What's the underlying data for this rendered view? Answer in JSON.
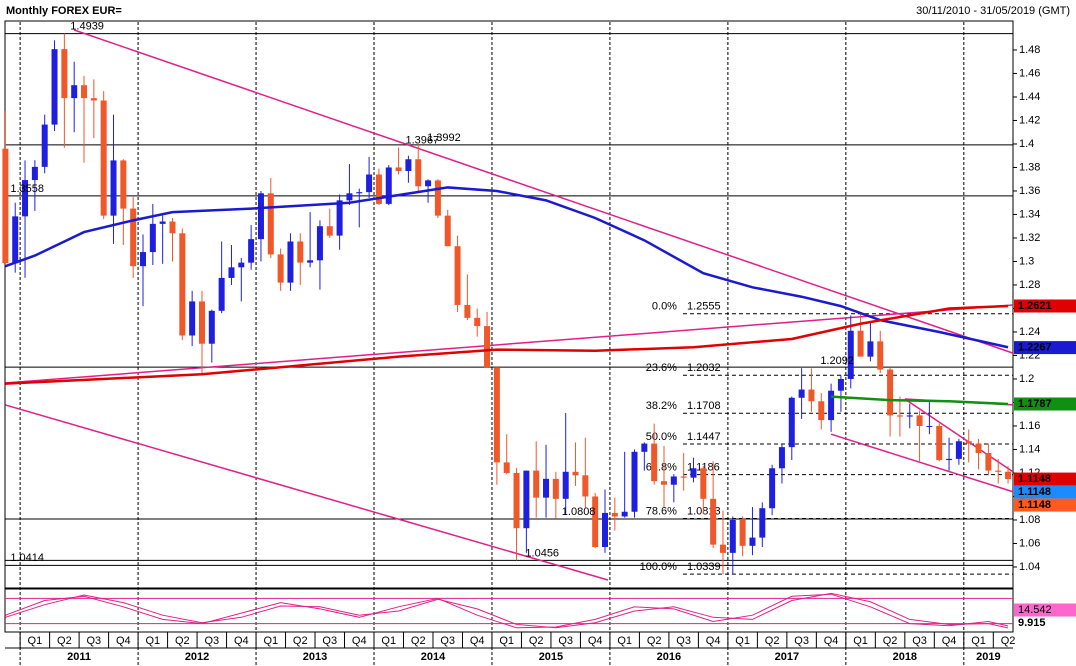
{
  "chart_data": {
    "type": "candlestick",
    "title": "Monthly FOREX EUR=",
    "subtitle": "30/11/2010 - 31/05/2019 (GMT)",
    "up_color": "#1f1fe0",
    "down_color": "#f0582a",
    "ylim": [
      1.0221,
      1.5038
    ],
    "yticks": [
      1.04,
      1.06,
      1.08,
      1.1,
      1.12,
      1.14,
      1.16,
      1.18,
      1.2,
      1.22,
      1.24,
      1.26,
      1.28,
      1.3,
      1.32,
      1.34,
      1.36,
      1.38,
      1.4,
      1.42,
      1.44,
      1.46,
      1.48
    ],
    "open": [
      1.396,
      1.2985,
      1.3384,
      1.3693,
      1.3805,
      1.4165,
      1.4807,
      1.439,
      1.45,
      1.439,
      1.437,
      1.339,
      1.386,
      1.345,
      1.296,
      1.308,
      1.332,
      1.334,
      1.324,
      1.237,
      1.266,
      1.23,
      1.258,
      1.286,
      1.295,
      1.299,
      1.319,
      1.358,
      1.306,
      1.282,
      1.317,
      1.299,
      1.301,
      1.33,
      1.322,
      1.352,
      1.358,
      1.359,
      1.374,
      1.349,
      1.38,
      1.377,
      1.387,
      1.364,
      1.369,
      1.339,
      1.313,
      1.263,
      1.252,
      1.245,
      1.21,
      1.129,
      1.12,
      1.073,
      1.122,
      1.099,
      1.115,
      1.098,
      1.121,
      1.118,
      1.1,
      1.057,
      1.086,
      1.083,
      1.087,
      1.138,
      1.145,
      1.113,
      1.11,
      1.117,
      1.116,
      1.124,
      1.098,
      1.059,
      1.052,
      1.08,
      1.058,
      1.065,
      1.09,
      1.124,
      1.142,
      1.184,
      1.191,
      1.181,
      1.165,
      1.19,
      1.2,
      1.241,
      1.219,
      1.232,
      1.208,
      1.169,
      1.168,
      1.169,
      1.16,
      1.16,
      1.131,
      1.132,
      1.147,
      1.145,
      1.137,
      1.122,
      1.121
    ],
    "high": [
      1.4282,
      1.35,
      1.386,
      1.3862,
      1.425,
      1.4882,
      1.4939,
      1.47,
      1.458,
      1.455,
      1.445,
      1.425,
      1.387,
      1.355,
      1.323,
      1.349,
      1.339,
      1.337,
      1.328,
      1.275,
      1.275,
      1.259,
      1.317,
      1.314,
      1.303,
      1.331,
      1.36,
      1.371,
      1.311,
      1.324,
      1.324,
      1.342,
      1.335,
      1.345,
      1.357,
      1.383,
      1.362,
      1.389,
      1.379,
      1.382,
      1.397,
      1.39,
      1.3992,
      1.37,
      1.37,
      1.344,
      1.322,
      1.289,
      1.26,
      1.257,
      1.21,
      1.153,
      1.124,
      1.122,
      1.147,
      1.144,
      1.121,
      1.171,
      1.146,
      1.15,
      1.103,
      1.106,
      1.099,
      1.138,
      1.14,
      1.146,
      1.162,
      1.143,
      1.119,
      1.137,
      1.133,
      1.126,
      1.13,
      1.088,
      1.083,
      1.083,
      1.091,
      1.095,
      1.127,
      1.145,
      1.185,
      1.2092,
      1.209,
      1.188,
      1.196,
      1.203,
      1.254,
      1.2555,
      1.248,
      1.241,
      1.21,
      1.185,
      1.179,
      1.173,
      1.182,
      1.162,
      1.15,
      1.149,
      1.157,
      1.149,
      1.145,
      1.132,
      1.126
    ],
    "low": [
      1.2969,
      1.2905,
      1.2861,
      1.343,
      1.375,
      1.411,
      1.3968,
      1.41,
      1.384,
      1.405,
      1.336,
      1.315,
      1.314,
      1.286,
      1.262,
      1.297,
      1.298,
      1.3,
      1.233,
      1.228,
      1.204,
      1.214,
      1.256,
      1.28,
      1.266,
      1.293,
      1.3,
      1.303,
      1.275,
      1.275,
      1.28,
      1.295,
      1.276,
      1.32,
      1.31,
      1.348,
      1.329,
      1.354,
      1.348,
      1.348,
      1.374,
      1.367,
      1.359,
      1.35,
      1.337,
      1.313,
      1.257,
      1.25,
      1.236,
      1.21,
      1.11,
      1.119,
      1.0456,
      1.052,
      1.082,
      1.082,
      1.081,
      1.085,
      1.109,
      1.09,
      1.056,
      1.052,
      1.071,
      1.082,
      1.082,
      1.122,
      1.11,
      1.091,
      1.095,
      1.105,
      1.112,
      1.085,
      1.056,
      1.0339,
      1.034,
      1.049,
      1.05,
      1.057,
      1.084,
      1.111,
      1.131,
      1.166,
      1.172,
      1.157,
      1.155,
      1.172,
      1.192,
      1.22,
      1.215,
      1.205,
      1.151,
      1.151,
      1.158,
      1.13,
      1.153,
      1.13,
      1.122,
      1.127,
      1.129,
      1.123,
      1.118,
      1.111,
      1.111
    ],
    "close": [
      1.2985,
      1.3384,
      1.3693,
      1.3805,
      1.4165,
      1.4807,
      1.439,
      1.45,
      1.439,
      1.437,
      1.339,
      1.386,
      1.345,
      1.296,
      1.308,
      1.332,
      1.334,
      1.324,
      1.237,
      1.266,
      1.23,
      1.258,
      1.286,
      1.295,
      1.299,
      1.319,
      1.358,
      1.306,
      1.282,
      1.317,
      1.299,
      1.301,
      1.33,
      1.322,
      1.352,
      1.358,
      1.359,
      1.374,
      1.349,
      1.38,
      1.377,
      1.387,
      1.364,
      1.369,
      1.339,
      1.313,
      1.263,
      1.252,
      1.245,
      1.21,
      1.129,
      1.12,
      1.073,
      1.122,
      1.099,
      1.115,
      1.098,
      1.121,
      1.118,
      1.1,
      1.057,
      1.086,
      1.083,
      1.087,
      1.138,
      1.145,
      1.113,
      1.11,
      1.117,
      1.116,
      1.124,
      1.098,
      1.059,
      1.052,
      1.08,
      1.058,
      1.065,
      1.09,
      1.124,
      1.142,
      1.184,
      1.191,
      1.181,
      1.165,
      1.19,
      1.2,
      1.241,
      1.219,
      1.232,
      1.208,
      1.169,
      1.168,
      1.169,
      1.16,
      1.16,
      1.131,
      1.132,
      1.147,
      1.145,
      1.137,
      1.122,
      1.121,
      1.1148
    ],
    "xticks": [
      {
        "value": 2,
        "label": "Q1"
      },
      {
        "value": 5,
        "label": "Q2"
      },
      {
        "value": 8,
        "label": "Q3"
      },
      {
        "value": 11,
        "label": "Q4"
      },
      {
        "value": 14,
        "label": "Q1"
      },
      {
        "value": 17,
        "label": "Q2"
      },
      {
        "value": 20,
        "label": "Q3"
      },
      {
        "value": 23,
        "label": "Q4"
      },
      {
        "value": 26,
        "label": "Q1"
      },
      {
        "value": 29,
        "label": "Q2"
      },
      {
        "value": 32,
        "label": "Q3"
      },
      {
        "value": 35,
        "label": "Q4"
      },
      {
        "value": 38,
        "label": "Q1"
      },
      {
        "value": 41,
        "label": "Q2"
      },
      {
        "value": 44,
        "label": "Q3"
      },
      {
        "value": 47,
        "label": "Q4"
      },
      {
        "value": 50,
        "label": "Q1"
      },
      {
        "value": 53,
        "label": "Q2"
      },
      {
        "value": 56,
        "label": "Q3"
      },
      {
        "value": 59,
        "label": "Q4"
      },
      {
        "value": 62,
        "label": "Q1"
      },
      {
        "value": 65,
        "label": "Q2"
      },
      {
        "value": 68,
        "label": "Q3"
      },
      {
        "value": 71,
        "label": "Q4"
      },
      {
        "value": 74,
        "label": "Q1"
      },
      {
        "value": 77,
        "label": "Q2"
      },
      {
        "value": 80,
        "label": "Q3"
      },
      {
        "value": 83,
        "label": "Q4"
      },
      {
        "value": 86,
        "label": "Q1"
      },
      {
        "value": 89,
        "label": "Q2"
      },
      {
        "value": 92,
        "label": "Q3"
      },
      {
        "value": 95,
        "label": "Q4"
      },
      {
        "value": 98,
        "label": "Q1"
      },
      {
        "value": 101,
        "label": "Q2"
      }
    ],
    "year_ticks": [
      {
        "value": 2,
        "label": "2011"
      },
      {
        "value": 14,
        "label": "2012"
      },
      {
        "value": 26,
        "label": "2013"
      },
      {
        "value": 38,
        "label": "2014"
      },
      {
        "value": 50,
        "label": "2015"
      },
      {
        "value": 62,
        "label": "2016"
      },
      {
        "value": 74,
        "label": "2017"
      },
      {
        "value": 86,
        "label": "2018"
      },
      {
        "value": 98,
        "label": "2019"
      }
    ],
    "moving_averages": [
      {
        "color": "#1a1ad0",
        "x": [
          0,
          3,
          8,
          13,
          17,
          25,
          35,
          45,
          50,
          55,
          60,
          65,
          71,
          76,
          81,
          85,
          89,
          95,
          102
        ],
        "values": [
          1.296,
          1.305,
          1.325,
          1.335,
          1.342,
          1.345,
          1.35,
          1.363,
          1.36,
          1.352,
          1.337,
          1.318,
          1.29,
          1.278,
          1.27,
          1.262,
          1.25,
          1.24,
          1.227
        ]
      },
      {
        "color": "#e00000",
        "x": [
          0,
          20,
          40,
          50,
          60,
          70,
          80,
          87,
          96,
          102
        ],
        "values": [
          1.196,
          1.204,
          1.219,
          1.225,
          1.224,
          1.227,
          1.234,
          1.247,
          1.26,
          1.2621
        ]
      },
      {
        "color": "#109010",
        "x": [
          84,
          90,
          96,
          102
        ],
        "values": [
          1.185,
          1.182,
          1.181,
          1.1787
        ]
      }
    ],
    "trendlines": [
      {
        "color": "#e0208a",
        "x": [
          7,
          102.5
        ],
        "values": [
          1.497,
          1.222
        ]
      },
      {
        "color": "#e0208a",
        "x": [
          0,
          61.3
        ],
        "values": [
          1.1779,
          1.0289
        ]
      },
      {
        "color": "#e0208a",
        "x": [
          0,
          102.5
        ],
        "values": [
          1.1966,
          1.263
        ]
      },
      {
        "color": "#e0208a",
        "x": [
          84,
          102.5
        ],
        "values": [
          1.153,
          1.104
        ]
      },
      {
        "color": "#e0208a",
        "x": [
          91.5,
          102.5
        ],
        "values": [
          1.183,
          1.121
        ]
      },
      {
        "color": "#e0208a",
        "x": [
          91.5,
          102.5
        ],
        "values": [
          1.183,
          1.178
        ]
      }
    ],
    "hlines": [
      1.4939,
      1.3992,
      1.3558,
      1.2101,
      1.0808,
      1.0456,
      1.0414
    ],
    "annotations": [
      {
        "x": 6.4,
        "value": 1.4939
      },
      {
        "x": 40.5,
        "value": 1.3967
      },
      {
        "x": 42.7,
        "value": 1.3992
      },
      {
        "x": 0.3,
        "value": 1.3558
      },
      {
        "x": 82.7,
        "value": 1.2092
      },
      {
        "x": 56.4,
        "value": 1.0808
      },
      {
        "x": 52.7,
        "value": 1.0456
      },
      {
        "x": 0.3,
        "value": 1.0414
      }
    ],
    "fibonacci": {
      "x_from": 73,
      "levels": [
        {
          "pct": "0.0%",
          "value": 1.2555
        },
        {
          "pct": "23.6%",
          "value": 1.2032
        },
        {
          "pct": "38.2%",
          "value": 1.1708
        },
        {
          "pct": "50.0%",
          "value": 1.1447
        },
        {
          "pct": "61.8%",
          "value": 1.1186
        },
        {
          "pct": "78.6%",
          "value": 1.0813
        },
        {
          "pct": "100.0%",
          "value": 1.0339
        }
      ]
    },
    "price_labels": [
      {
        "value": 1.2621,
        "color": "#e00000"
      },
      {
        "value": 1.2267,
        "color": "#1a1ad0"
      },
      {
        "value": 1.1787,
        "color": "#109010"
      },
      {
        "value": 1.1148,
        "color": "#e00000"
      },
      {
        "value": 1.1148,
        "color": "#1a8cff"
      },
      {
        "value": 1.1148,
        "color": "#ff5a1f"
      }
    ],
    "oscillator": {
      "ylim": [
        0,
        100
      ],
      "levels": [
        80,
        20
      ],
      "color": "#e0208a",
      "x": [
        0,
        4,
        8,
        12,
        16,
        20,
        24,
        28,
        32,
        36,
        40,
        44,
        48,
        52,
        56,
        60,
        64,
        68,
        72,
        76,
        80,
        84,
        88,
        92,
        96,
        100,
        102
      ],
      "series": [
        {
          "values": [
            40,
            75,
            85,
            60,
            30,
            20,
            45,
            70,
            55,
            35,
            60,
            80,
            40,
            10,
            12,
            30,
            60,
            55,
            25,
            40,
            85,
            90,
            60,
            20,
            15,
            25,
            14.542
          ]
        },
        {
          "values": [
            35,
            65,
            88,
            70,
            40,
            22,
            35,
            62,
            60,
            40,
            50,
            78,
            55,
            18,
            10,
            22,
            50,
            60,
            35,
            30,
            75,
            92,
            72,
            30,
            18,
            20,
            9.915
          ]
        }
      ]
    }
  }
}
